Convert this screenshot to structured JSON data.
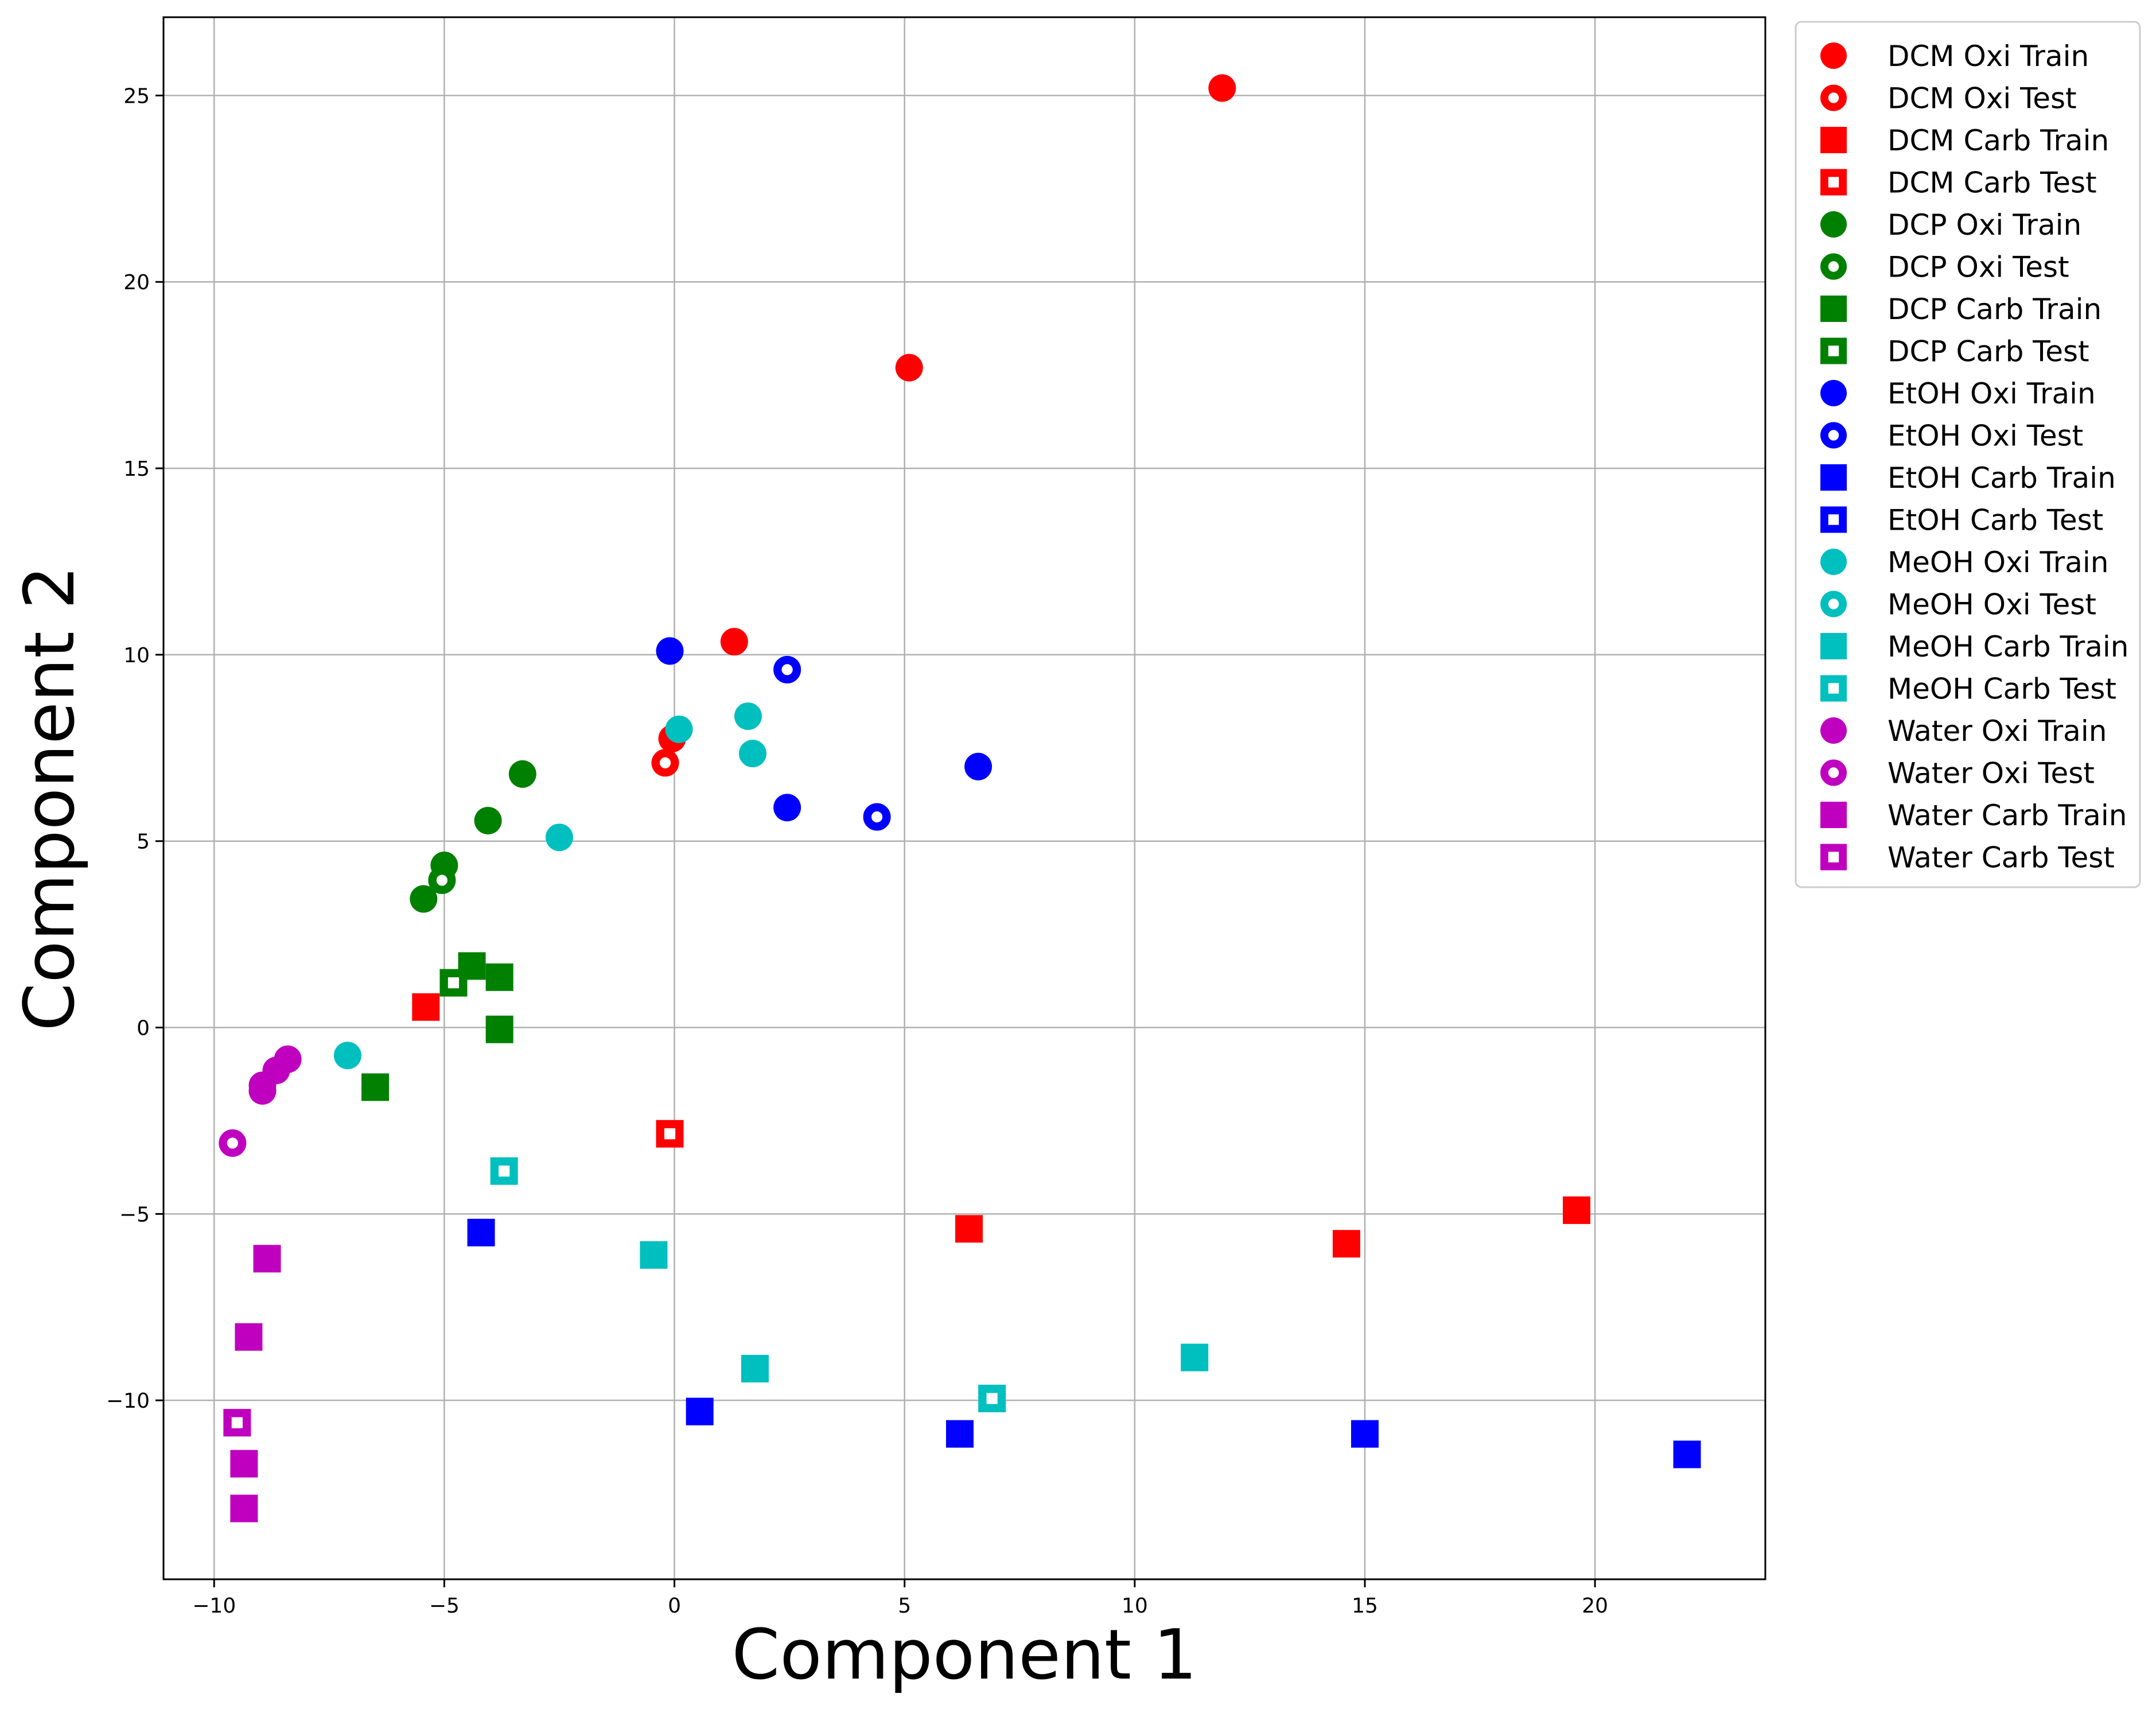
{
  "chart_data": {
    "type": "scatter",
    "title": "",
    "xlabel": "Component 1",
    "ylabel": "Component 2",
    "xlim": [
      -11.1,
      23.7
    ],
    "ylim": [
      -14.8,
      27.1
    ],
    "xticks": [
      -10,
      -5,
      0,
      5,
      10,
      15,
      20
    ],
    "yticks": [
      -10,
      -5,
      0,
      5,
      10,
      15,
      20,
      25
    ],
    "grid": true,
    "legend_position": "outside-right",
    "series": [
      {
        "name": "DCM Oxi Train",
        "color": "#ff0000",
        "marker": "circle",
        "filled": true,
        "points": [
          [
            11.9,
            25.2
          ],
          [
            5.1,
            17.7
          ],
          [
            1.3,
            10.35
          ],
          [
            -0.05,
            7.75
          ]
        ]
      },
      {
        "name": "DCM Oxi Test",
        "color": "#ff0000",
        "marker": "circle",
        "filled": false,
        "points": [
          [
            -0.2,
            7.1
          ]
        ]
      },
      {
        "name": "DCM Carb Train",
        "color": "#ff0000",
        "marker": "square",
        "filled": true,
        "points": [
          [
            -5.4,
            0.55
          ],
          [
            6.4,
            -5.4
          ],
          [
            14.6,
            -5.8
          ],
          [
            19.6,
            -4.9
          ]
        ]
      },
      {
        "name": "DCM Carb Test",
        "color": "#ff0000",
        "marker": "square",
        "filled": false,
        "points": [
          [
            -0.1,
            -2.85
          ]
        ]
      },
      {
        "name": "DCP Oxi Train",
        "color": "#008000",
        "marker": "circle",
        "filled": true,
        "points": [
          [
            -3.3,
            6.8
          ],
          [
            -4.05,
            5.55
          ],
          [
            -5.0,
            4.35
          ],
          [
            -5.45,
            3.45
          ]
        ]
      },
      {
        "name": "DCP Oxi Test",
        "color": "#008000",
        "marker": "circle",
        "filled": false,
        "points": [
          [
            -5.05,
            3.95
          ]
        ]
      },
      {
        "name": "DCP Carb Train",
        "color": "#008000",
        "marker": "square",
        "filled": true,
        "points": [
          [
            -4.4,
            1.65
          ],
          [
            -3.8,
            1.35
          ],
          [
            -3.8,
            -0.05
          ],
          [
            -6.5,
            -1.6
          ]
        ]
      },
      {
        "name": "DCP Carb Test",
        "color": "#008000",
        "marker": "square",
        "filled": false,
        "points": [
          [
            -4.8,
            1.2
          ]
        ]
      },
      {
        "name": "EtOH Oxi Train",
        "color": "#0000ff",
        "marker": "circle",
        "filled": true,
        "points": [
          [
            -0.1,
            10.1
          ],
          [
            2.45,
            5.9
          ],
          [
            6.6,
            7.0
          ]
        ]
      },
      {
        "name": "EtOH Oxi Test",
        "color": "#0000ff",
        "marker": "circle",
        "filled": false,
        "points": [
          [
            2.45,
            9.6
          ],
          [
            4.4,
            5.65
          ]
        ]
      },
      {
        "name": "EtOH Carb Train",
        "color": "#0000ff",
        "marker": "square",
        "filled": true,
        "points": [
          [
            -4.2,
            -5.5
          ],
          [
            0.55,
            -10.3
          ],
          [
            6.2,
            -10.9
          ],
          [
            15.0,
            -10.9
          ],
          [
            22.0,
            -11.45
          ]
        ]
      },
      {
        "name": "EtOH Carb Test",
        "color": "#0000ff",
        "marker": "square",
        "filled": false,
        "points": []
      },
      {
        "name": "MeOH Oxi Train",
        "color": "#00bfbf",
        "marker": "circle",
        "filled": true,
        "points": [
          [
            0.1,
            8.0
          ],
          [
            1.6,
            8.35
          ],
          [
            1.7,
            7.35
          ],
          [
            -2.5,
            5.1
          ],
          [
            -7.1,
            -0.75
          ]
        ]
      },
      {
        "name": "MeOH Oxi Test",
        "color": "#00bfbf",
        "marker": "circle",
        "filled": false,
        "points": []
      },
      {
        "name": "MeOH Carb Train",
        "color": "#00bfbf",
        "marker": "square",
        "filled": true,
        "points": [
          [
            -0.45,
            -6.1
          ],
          [
            1.75,
            -9.15
          ],
          [
            11.3,
            -8.85
          ]
        ]
      },
      {
        "name": "MeOH Carb Test",
        "color": "#00bfbf",
        "marker": "square",
        "filled": false,
        "points": [
          [
            -3.7,
            -3.85
          ],
          [
            6.9,
            -9.95
          ]
        ]
      },
      {
        "name": "Water Oxi Train",
        "color": "#bf00bf",
        "marker": "circle",
        "filled": true,
        "points": [
          [
            -8.4,
            -0.85
          ],
          [
            -8.65,
            -1.15
          ],
          [
            -8.95,
            -1.55
          ],
          [
            -8.95,
            -1.7
          ]
        ]
      },
      {
        "name": "Water Oxi Test",
        "color": "#bf00bf",
        "marker": "circle",
        "filled": false,
        "points": [
          [
            -9.6,
            -3.1
          ]
        ]
      },
      {
        "name": "Water Carb Train",
        "color": "#bf00bf",
        "marker": "square",
        "filled": true,
        "points": [
          [
            -8.85,
            -6.2
          ],
          [
            -9.25,
            -8.3
          ],
          [
            -9.35,
            -11.7
          ],
          [
            -9.35,
            -12.9
          ]
        ]
      },
      {
        "name": "Water Carb Test",
        "color": "#bf00bf",
        "marker": "square",
        "filled": false,
        "points": [
          [
            -9.5,
            -10.6
          ]
        ]
      }
    ]
  }
}
